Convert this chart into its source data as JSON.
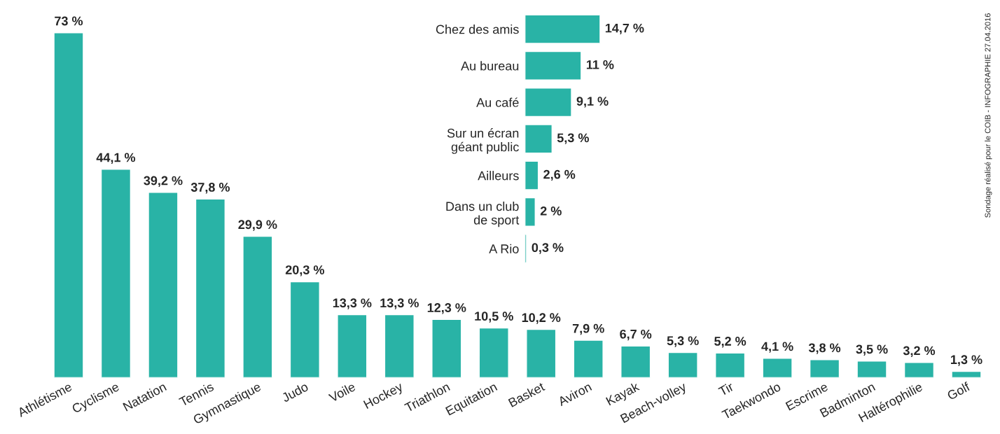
{
  "chart_data": [
    {
      "type": "bar",
      "color": "#29b3a6",
      "categories": [
        "Athlétisme",
        "Cyclisme",
        "Natation",
        "Tennis",
        "Gymnastique",
        "Judo",
        "Voile",
        "Hockey",
        "Triathlon",
        "Equitation",
        "Basket",
        "Aviron",
        "Kayak",
        "Beach-volley",
        "Tir",
        "Taekwondo",
        "Escrime",
        "Badminton",
        "Haltérophilie",
        "Golf"
      ],
      "values": [
        73,
        44.1,
        39.2,
        37.8,
        29.9,
        20.3,
        13.3,
        13.3,
        12.3,
        10.5,
        10.2,
        7.9,
        6.7,
        5.3,
        5.2,
        4.1,
        3.8,
        3.5,
        3.2,
        1.3
      ],
      "value_labels": [
        "73 %",
        "44,1 %",
        "39,2 %",
        "37,8 %",
        "29,9 %",
        "20,3 %",
        "13,3 %",
        "13,3 %",
        "12,3 %",
        "10,5 %",
        "10,2 %",
        "7,9 %",
        "6,7 %",
        "5,3 %",
        "5,2 %",
        "4,1 %",
        "3,8 %",
        "3,5 %",
        "3,2 %",
        "1,3 %"
      ],
      "annotations": [
        "Sondage réalisé pour le COIB - INFOGRAPHIE 27.04.2016"
      ]
    },
    {
      "type": "bar",
      "orientation": "horizontal",
      "color": "#29b3a6",
      "categories": [
        "Chez des amis",
        "Au bureau",
        "Au café",
        "Sur un écran\ngéant public",
        "Ailleurs",
        "Dans un club\nde sport",
        "A Rio"
      ],
      "values": [
        14.7,
        11,
        9.1,
        5.3,
        2.6,
        2,
        0.3
      ],
      "value_labels": [
        "14,7 %",
        "11 %",
        "9,1 %",
        "5,3 %",
        "2,6 %",
        "2 %",
        "0,3 %"
      ]
    }
  ]
}
